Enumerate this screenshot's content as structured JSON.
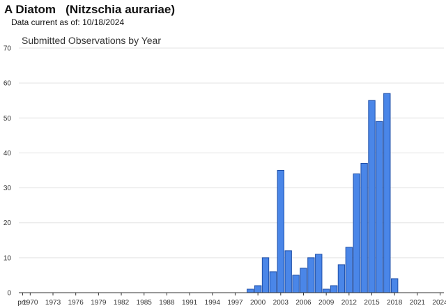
{
  "header": {
    "common_name": "A Diatom",
    "scientific_name": "(Nitzschia aurariae)",
    "data_current_label": "Data current as of:",
    "data_current_date": "10/18/2024"
  },
  "chart_data": {
    "type": "bar",
    "title": "Submitted Observations by Year",
    "xlabel": "",
    "ylabel": "",
    "ylim": [
      0,
      70
    ],
    "yticks": [
      0,
      10,
      20,
      30,
      40,
      50,
      60,
      70
    ],
    "grid": true,
    "legend": "none",
    "bar_color": "#4a86e8",
    "bar_stroke": "#1f4fa8",
    "x_tick_labels": [
      "pre",
      "1970",
      "1973",
      "1976",
      "1979",
      "1982",
      "1985",
      "1988",
      "1991",
      "1994",
      "1997",
      "2000",
      "2003",
      "2006",
      "2009",
      "2012",
      "2015",
      "2018",
      "2021",
      "2024"
    ],
    "categories": [
      "pre",
      "1970",
      "1971",
      "1972",
      "1973",
      "1974",
      "1975",
      "1976",
      "1977",
      "1978",
      "1979",
      "1980",
      "1981",
      "1982",
      "1983",
      "1984",
      "1985",
      "1986",
      "1987",
      "1988",
      "1989",
      "1990",
      "1991",
      "1992",
      "1993",
      "1994",
      "1995",
      "1996",
      "1997",
      "1998",
      "1999",
      "2000",
      "2001",
      "2002",
      "2003",
      "2004",
      "2005",
      "2006",
      "2007",
      "2008",
      "2009",
      "2010",
      "2011",
      "2012",
      "2013",
      "2014",
      "2015",
      "2016",
      "2017",
      "2018",
      "2019",
      "2020",
      "2021",
      "2022",
      "2023",
      "2024"
    ],
    "values": [
      0,
      0,
      0,
      0,
      0,
      0,
      0,
      0,
      0,
      0,
      0,
      0,
      0,
      0,
      0,
      0,
      0,
      0,
      0,
      0,
      0,
      0,
      0,
      0,
      0,
      0,
      0,
      0,
      0,
      0,
      1,
      2,
      10,
      6,
      35,
      12,
      5,
      7,
      10,
      11,
      1,
      2,
      8,
      13,
      34,
      37,
      55,
      49,
      57,
      4,
      0,
      0,
      0,
      0,
      0,
      0
    ]
  }
}
